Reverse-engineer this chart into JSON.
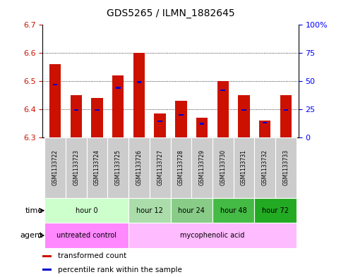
{
  "title": "GDS5265 / ILMN_1882645",
  "samples": [
    "GSM1133722",
    "GSM1133723",
    "GSM1133724",
    "GSM1133725",
    "GSM1133726",
    "GSM1133727",
    "GSM1133728",
    "GSM1133729",
    "GSM1133730",
    "GSM1133731",
    "GSM1133732",
    "GSM1133733"
  ],
  "transformed_count": [
    6.56,
    6.45,
    6.44,
    6.52,
    6.6,
    6.385,
    6.43,
    6.37,
    6.5,
    6.45,
    6.36,
    6.45
  ],
  "percentile_rank": [
    47,
    24,
    24,
    44,
    49,
    14,
    20,
    12,
    42,
    24,
    13,
    24
  ],
  "ymin": 6.3,
  "ymax": 6.7,
  "yticks_left": [
    6.3,
    6.4,
    6.5,
    6.6,
    6.7
  ],
  "yticks_right": [
    0,
    25,
    50,
    75,
    100
  ],
  "ytick_right_labels": [
    "0",
    "25",
    "50",
    "75",
    "100%"
  ],
  "bar_color": "#cc1100",
  "blue_color": "#0000cc",
  "grid_lines": [
    6.4,
    6.5,
    6.6
  ],
  "time_groups": [
    {
      "label": "hour 0",
      "start": 0,
      "end": 4,
      "color": "#ccffcc"
    },
    {
      "label": "hour 12",
      "start": 4,
      "end": 6,
      "color": "#aaddaa"
    },
    {
      "label": "hour 24",
      "start": 6,
      "end": 8,
      "color": "#88cc88"
    },
    {
      "label": "hour 48",
      "start": 8,
      "end": 10,
      "color": "#44bb44"
    },
    {
      "label": "hour 72",
      "start": 10,
      "end": 12,
      "color": "#22aa22"
    }
  ],
  "agent_groups": [
    {
      "label": "untreated control",
      "start": 0,
      "end": 4,
      "color": "#ff88ff"
    },
    {
      "label": "mycophenolic acid",
      "start": 4,
      "end": 12,
      "color": "#ffbbff"
    }
  ],
  "legend": [
    {
      "label": "transformed count",
      "color": "#cc1100"
    },
    {
      "label": "percentile rank within the sample",
      "color": "#0000cc"
    }
  ],
  "time_row_label": "time",
  "agent_row_label": "agent"
}
